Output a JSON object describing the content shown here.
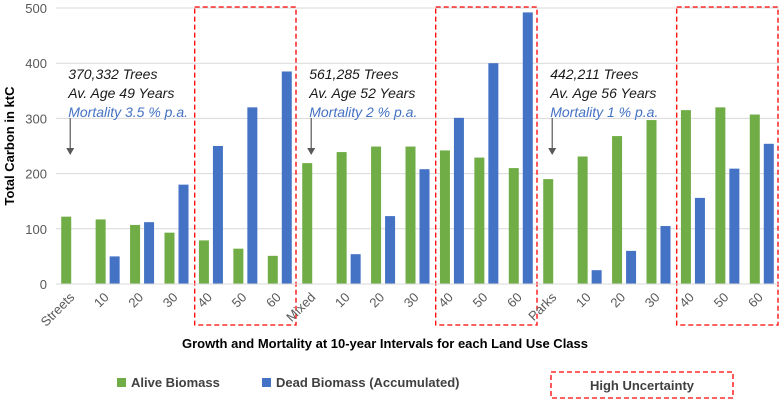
{
  "chart_data": {
    "type": "bar",
    "ylabel": "Total Carbon in ktC",
    "xlabel": "Growth and Mortality at 10-year Intervals for each Land Use Class",
    "ylim": [
      0,
      500
    ],
    "yticks": [
      0,
      100,
      200,
      300,
      400,
      500
    ],
    "grid": "horizontal",
    "categories": [
      "Streets",
      "10",
      "20",
      "30",
      "40",
      "50",
      "60",
      "Mixed",
      "10",
      "20",
      "30",
      "40",
      "50",
      "60",
      "Parks",
      "10",
      "20",
      "30",
      "40",
      "50",
      "60"
    ],
    "series": [
      {
        "name": "Alive Biomass",
        "color": "#70ad47",
        "values": [
          122,
          117,
          107,
          93,
          79,
          64,
          51,
          219,
          239,
          249,
          249,
          242,
          229,
          210,
          190,
          231,
          268,
          297,
          315,
          320,
          307
        ]
      },
      {
        "name": "Dead Biomass (Accumulated)",
        "color": "#4472c4",
        "values": [
          null,
          50,
          112,
          180,
          250,
          320,
          385,
          null,
          54,
          123,
          208,
          301,
          400,
          492,
          null,
          25,
          60,
          105,
          156,
          209,
          254
        ]
      }
    ],
    "annotations": [
      {
        "lines": [
          "370,332 Trees",
          "Av. Age 49 Years",
          "Mortality 3.5 % p.a."
        ],
        "group": "Streets"
      },
      {
        "lines": [
          "561,285 Trees",
          "Av. Age 52 Years",
          "Mortality 2 % p.a."
        ],
        "group": "Mixed"
      },
      {
        "lines": [
          "442,211 Trees",
          "Av. Age 56 Years",
          "Mortality 1 % p.a."
        ],
        "group": "Parks"
      }
    ],
    "high_uncertainty_groups": [
      [
        4,
        6
      ],
      [
        11,
        13
      ],
      [
        18,
        20
      ]
    ],
    "legend": [
      "Alive Biomass",
      "Dead Biomass (Accumulated)",
      "High Uncertainty"
    ],
    "legend_position": "bottom",
    "highlight_color": "#ff0000"
  }
}
